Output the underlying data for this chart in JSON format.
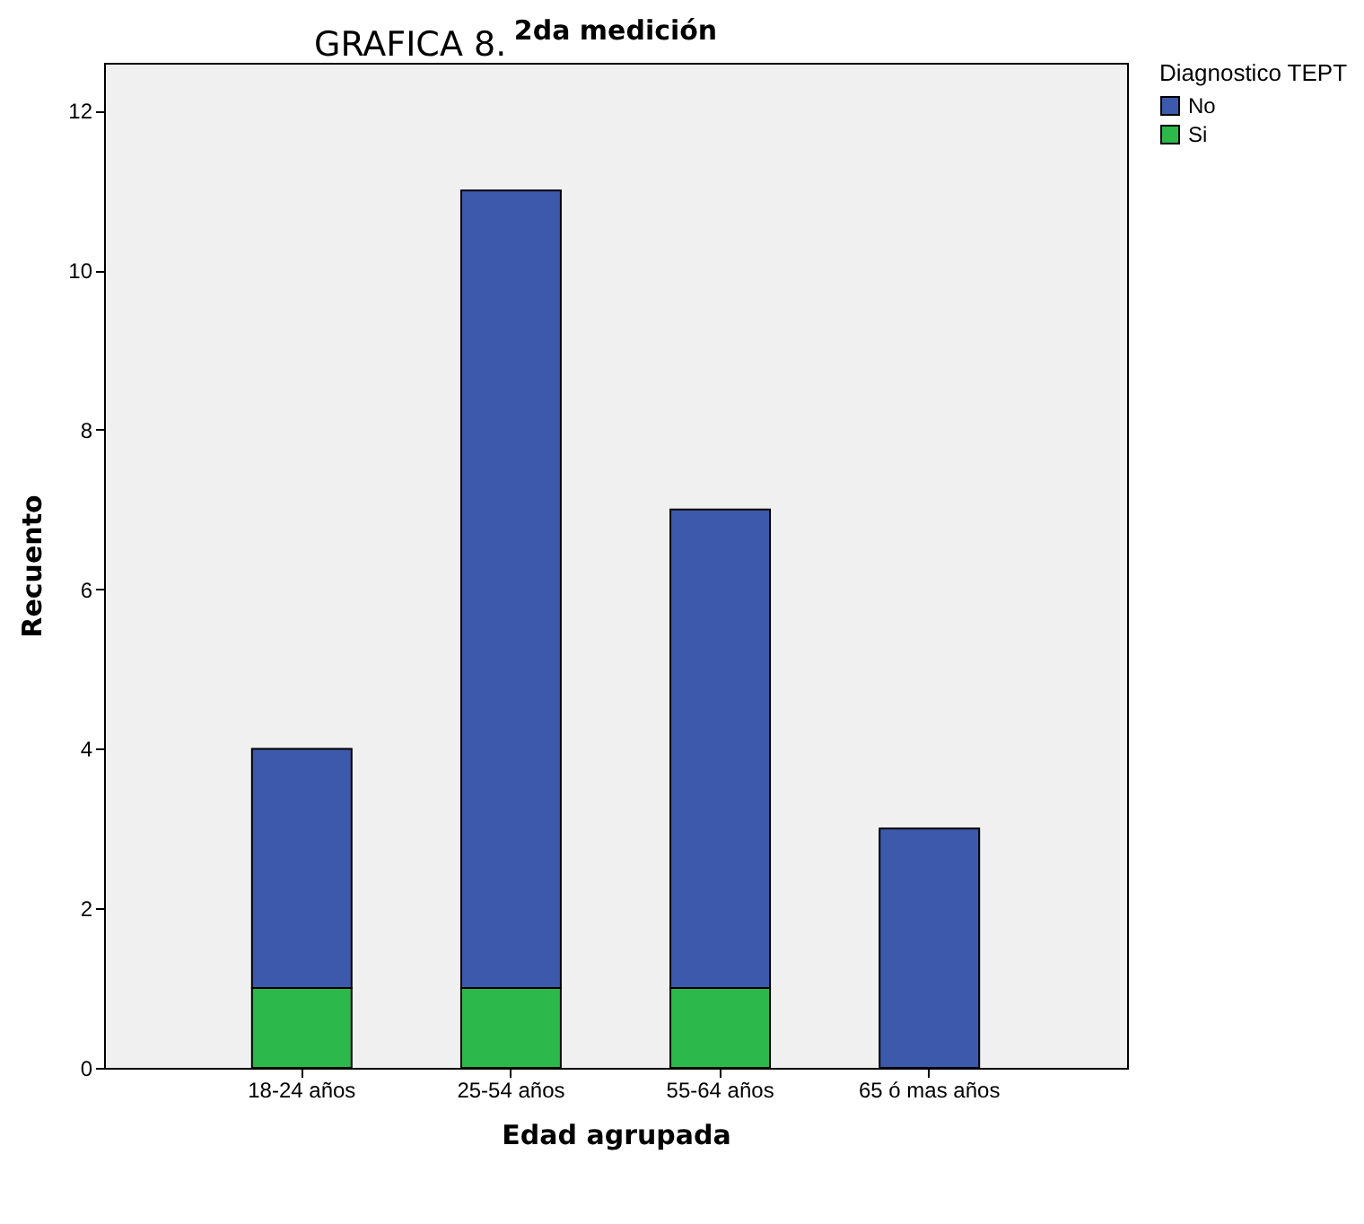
{
  "chart_data": {
    "type": "bar",
    "title": "2da medición",
    "annotations": [
      "GRAFICA 8."
    ],
    "xlabel": "Edad agrupada",
    "ylabel": "Recuento",
    "legend_title": "Diagnostico TEPT",
    "categories": [
      "18-24 años",
      "25-54 años",
      "55-64 años",
      "65 ó mas años"
    ],
    "series": [
      {
        "name": "Si",
        "color": "#2db84b",
        "values": [
          1,
          1,
          1,
          0
        ]
      },
      {
        "name": "No",
        "color": "#3d59ab",
        "values": [
          3,
          10,
          6,
          3
        ]
      }
    ],
    "stacked": true,
    "ylim": [
      0,
      12.6
    ],
    "yticks": [
      0,
      2,
      4,
      6,
      8,
      10,
      12
    ],
    "grid": false,
    "legend": "top right"
  }
}
